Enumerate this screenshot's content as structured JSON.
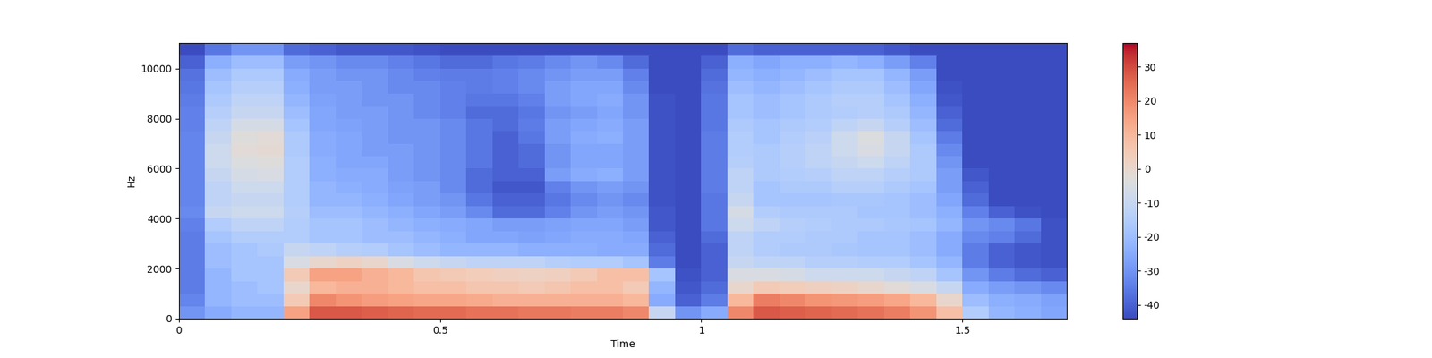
{
  "chart_data": {
    "type": "heatmap",
    "x_label": "Time",
    "y_label": "Hz",
    "color": "coolwarm",
    "time_edges": [
      0,
      0.05,
      0.1,
      0.15,
      0.2,
      0.25,
      0.3,
      0.35,
      0.4,
      0.45,
      0.5,
      0.55,
      0.6,
      0.65,
      0.7,
      0.75,
      0.8,
      0.85,
      0.9,
      0.95,
      1.0,
      1.05,
      1.1,
      1.15,
      1.2,
      1.25,
      1.3,
      1.35,
      1.4,
      1.45,
      1.5,
      1.55,
      1.6,
      1.65,
      1.7
    ],
    "freq_edges": [
      0,
      500,
      1000,
      1500,
      2000,
      2500,
      3000,
      3500,
      4000,
      4500,
      5000,
      5500,
      6000,
      6500,
      7000,
      7500,
      8000,
      8500,
      9000,
      9500,
      10000,
      10500,
      11025
    ],
    "cells": [
      [
        -30,
        -25,
        -22,
        -22,
        15,
        28,
        28,
        27,
        26,
        25,
        25,
        24,
        24,
        23,
        23,
        22,
        22,
        20,
        -10,
        -30,
        -25,
        20,
        28,
        27,
        26,
        25,
        24,
        22,
        18,
        8,
        -15,
        -22,
        -24,
        -26
      ],
      [
        -33,
        -22,
        -20,
        -20,
        5,
        20,
        18,
        16,
        15,
        14,
        14,
        13,
        12,
        12,
        12,
        12,
        12,
        10,
        -25,
        -40,
        -35,
        10,
        22,
        20,
        18,
        17,
        16,
        14,
        10,
        0,
        -20,
        -24,
        -25,
        -27
      ],
      [
        -35,
        -22,
        -20,
        -18,
        0,
        10,
        12,
        12,
        10,
        8,
        8,
        6,
        6,
        5,
        6,
        8,
        8,
        5,
        -22,
        -42,
        -38,
        0,
        5,
        4,
        3,
        2,
        0,
        -2,
        -5,
        -10,
        -25,
        -28,
        -30,
        -32
      ],
      [
        -35,
        -22,
        -18,
        -18,
        5,
        15,
        15,
        12,
        10,
        6,
        5,
        4,
        3,
        2,
        3,
        5,
        8,
        8,
        -18,
        -43,
        -40,
        -5,
        -5,
        -6,
        -8,
        -8,
        -8,
        -10,
        -12,
        -18,
        -30,
        -35,
        -38,
        -40
      ],
      [
        -35,
        -20,
        -18,
        -18,
        -5,
        0,
        2,
        0,
        -5,
        -8,
        -10,
        -12,
        -12,
        -12,
        -14,
        -15,
        -15,
        -18,
        -35,
        -44,
        -40,
        -10,
        -12,
        -12,
        -14,
        -14,
        -15,
        -15,
        -18,
        -22,
        -35,
        -40,
        -42,
        -43
      ],
      [
        -35,
        -20,
        -18,
        -16,
        -10,
        -12,
        -14,
        -15,
        -18,
        -20,
        -22,
        -22,
        -22,
        -24,
        -24,
        -24,
        -25,
        -25,
        -38,
        -44,
        -40,
        -12,
        -15,
        -16,
        -16,
        -17,
        -18,
        -18,
        -20,
        -25,
        -35,
        -40,
        -42,
        -43
      ],
      [
        -35,
        -18,
        -15,
        -15,
        -15,
        -18,
        -18,
        -20,
        -20,
        -22,
        -24,
        -26,
        -26,
        -27,
        -26,
        -25,
        -25,
        -26,
        -40,
        -44,
        -38,
        -12,
        -15,
        -15,
        -16,
        -16,
        -18,
        -18,
        -20,
        -25,
        -32,
        -34,
        -38,
        -43
      ],
      [
        -34,
        -15,
        -12,
        -12,
        -15,
        -18,
        -18,
        -20,
        -22,
        -24,
        -25,
        -26,
        -28,
        -28,
        -27,
        -26,
        -26,
        -28,
        -42,
        -44,
        -36,
        -8,
        -12,
        -14,
        -15,
        -16,
        -16,
        -17,
        -18,
        -22,
        -30,
        -32,
        -36,
        -43
      ],
      [
        -32,
        -10,
        -8,
        -8,
        -14,
        -20,
        -20,
        -22,
        -24,
        -26,
        -28,
        -32,
        -38,
        -38,
        -34,
        -30,
        -28,
        -30,
        -42,
        -44,
        -36,
        -6,
        -15,
        -16,
        -16,
        -16,
        -18,
        -18,
        -20,
        -24,
        -34,
        -40,
        -43,
        -44
      ],
      [
        -33,
        -12,
        -10,
        -10,
        -15,
        -22,
        -22,
        -24,
        -26,
        -28,
        -30,
        -36,
        -40,
        -40,
        -36,
        -32,
        -30,
        -32,
        -43,
        -44,
        -36,
        -10,
        -18,
        -18,
        -18,
        -17,
        -17,
        -18,
        -20,
        -26,
        -38,
        -44,
        -44,
        -44
      ],
      [
        -33,
        -12,
        -8,
        -8,
        -15,
        -22,
        -24,
        -25,
        -27,
        -28,
        -32,
        -38,
        -42,
        -42,
        -34,
        -30,
        -28,
        -30,
        -43,
        -44,
        -35,
        -12,
        -18,
        -16,
        -16,
        -14,
        -14,
        -16,
        -18,
        -28,
        -40,
        -44,
        -44,
        -44
      ],
      [
        -33,
        -10,
        -6,
        -5,
        -15,
        -24,
        -25,
        -25,
        -28,
        -30,
        -32,
        -38,
        -40,
        -40,
        -28,
        -25,
        -24,
        -28,
        -43,
        -44,
        -35,
        -12,
        -16,
        -15,
        -14,
        -12,
        -12,
        -14,
        -16,
        -28,
        -42,
        -44,
        -44,
        -44
      ],
      [
        -33,
        -8,
        -4,
        -3,
        -15,
        -24,
        -26,
        -26,
        -28,
        -30,
        -32,
        -36,
        -40,
        -38,
        -30,
        -26,
        -26,
        -28,
        -43,
        -44,
        -35,
        -14,
        -16,
        -14,
        -12,
        -10,
        -8,
        -12,
        -16,
        -30,
        -44,
        -44,
        -44,
        -44
      ],
      [
        -33,
        -8,
        -2,
        -1,
        -16,
        -25,
        -26,
        -28,
        -28,
        -30,
        -32,
        -36,
        -40,
        -38,
        -30,
        -26,
        -26,
        -28,
        -43,
        -44,
        -35,
        -15,
        -16,
        -14,
        -12,
        -8,
        -5,
        -10,
        -16,
        -32,
        -44,
        -44,
        -44,
        -44
      ],
      [
        -33,
        -10,
        -3,
        -2,
        -16,
        -25,
        -26,
        -28,
        -30,
        -30,
        -32,
        -36,
        -40,
        -36,
        -28,
        -25,
        -24,
        -28,
        -43,
        -44,
        -35,
        -15,
        -18,
        -15,
        -13,
        -8,
        -4,
        -10,
        -18,
        -35,
        -44,
        -44,
        -44,
        -44
      ],
      [
        -34,
        -12,
        -6,
        -6,
        -18,
        -26,
        -27,
        -28,
        -30,
        -30,
        -32,
        -36,
        -38,
        -35,
        -28,
        -26,
        -25,
        -28,
        -43,
        -44,
        -36,
        -16,
        -18,
        -16,
        -15,
        -12,
        -10,
        -14,
        -20,
        -38,
        -44,
        -44,
        -44,
        -44
      ],
      [
        -34,
        -14,
        -10,
        -10,
        -20,
        -26,
        -28,
        -28,
        -30,
        -32,
        -34,
        -38,
        -38,
        -36,
        -30,
        -28,
        -26,
        -30,
        -43,
        -44,
        -36,
        -18,
        -20,
        -18,
        -16,
        -15,
        -14,
        -16,
        -22,
        -40,
        -44,
        -44,
        -44,
        -44
      ],
      [
        -35,
        -16,
        -12,
        -12,
        -22,
        -27,
        -28,
        -30,
        -30,
        -32,
        -34,
        -36,
        -36,
        -34,
        -28,
        -26,
        -25,
        -30,
        -43,
        -44,
        -36,
        -18,
        -20,
        -18,
        -16,
        -14,
        -14,
        -18,
        -24,
        -42,
        -44,
        -44,
        -44,
        -44
      ],
      [
        -36,
        -18,
        -14,
        -14,
        -24,
        -28,
        -28,
        -30,
        -32,
        -32,
        -34,
        -35,
        -34,
        -32,
        -28,
        -26,
        -26,
        -32,
        -44,
        -44,
        -37,
        -20,
        -22,
        -20,
        -18,
        -16,
        -16,
        -20,
        -26,
        -43,
        -44,
        -44,
        -44,
        -44
      ],
      [
        -37,
        -20,
        -16,
        -16,
        -25,
        -28,
        -30,
        -30,
        -32,
        -34,
        -35,
        -35,
        -34,
        -32,
        -30,
        -28,
        -28,
        -34,
        -44,
        -44,
        -38,
        -22,
        -24,
        -22,
        -20,
        -18,
        -18,
        -22,
        -28,
        -44,
        -44,
        -44,
        -44,
        -44
      ],
      [
        -40,
        -24,
        -20,
        -20,
        -28,
        -30,
        -32,
        -32,
        -34,
        -36,
        -38,
        -38,
        -36,
        -35,
        -32,
        -30,
        -32,
        -38,
        -44,
        -44,
        -40,
        -24,
        -26,
        -24,
        -24,
        -22,
        -24,
        -28,
        -34,
        -44,
        -44,
        -44,
        -44,
        -44
      ],
      [
        -44,
        -36,
        -30,
        -30,
        -38,
        -40,
        -42,
        -42,
        -42,
        -43,
        -44,
        -44,
        -44,
        -44,
        -44,
        -44,
        -44,
        -44,
        -44,
        -44,
        -44,
        -38,
        -40,
        -40,
        -40,
        -40,
        -40,
        -42,
        -44,
        -44,
        -44,
        -44,
        -44,
        -44
      ]
    ],
    "xlim": [
      0,
      1.7
    ],
    "ylim": [
      0,
      11025
    ],
    "xticks": [
      0,
      0.5,
      1,
      1.5
    ],
    "yticks": [
      0,
      2000,
      4000,
      6000,
      8000,
      10000
    ],
    "colorbar_range": [
      -44,
      37
    ],
    "colorbar_ticks": [
      -40,
      -30,
      -20,
      -10,
      0,
      10,
      20,
      30
    ]
  }
}
